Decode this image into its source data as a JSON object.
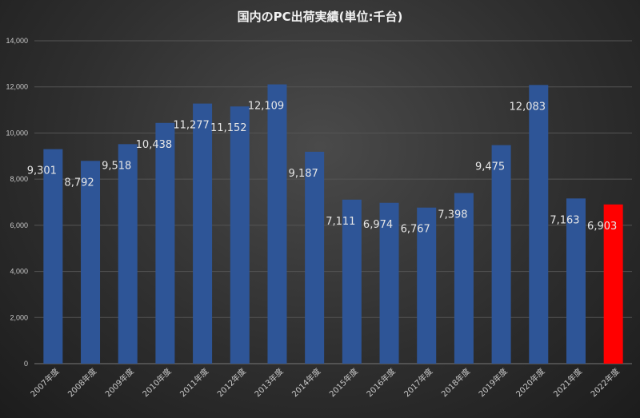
{
  "chart_data": {
    "type": "bar",
    "title": "国内のPC出荷実績(単位:千台)",
    "categories": [
      "2007年度",
      "2008年度",
      "2009年度",
      "2010年度",
      "2011年度",
      "2012年度",
      "2013年度",
      "2014年度",
      "2015年度",
      "2016年度",
      "2017年度",
      "2018年度",
      "2019年度",
      "2020年度",
      "2021年度",
      "2022年度"
    ],
    "values": [
      9301,
      8792,
      9518,
      10438,
      11277,
      11152,
      12109,
      9187,
      7111,
      6974,
      6767,
      7398,
      9475,
      12083,
      7163,
      6903
    ],
    "data_labels": [
      "9,301",
      "8,792",
      "9,518",
      "10,438",
      "11,277",
      "11,152",
      "12,109",
      "9,187",
      "7,111",
      "6,974",
      "6,767",
      "7,398",
      "9,475",
      "12,083",
      "7,163",
      "6,903"
    ],
    "ylim": [
      0,
      14000
    ],
    "yticks": [
      0,
      2000,
      4000,
      6000,
      8000,
      10000,
      12000,
      14000
    ],
    "ytick_labels": [
      "0",
      "2,000",
      "4,000",
      "6,000",
      "8,000",
      "10,000",
      "12,000",
      "14,000"
    ],
    "grid": true,
    "legend": "none",
    "bar_color": "#2e5597",
    "highlight_color": "#ff0000",
    "highlight_index": 15
  }
}
